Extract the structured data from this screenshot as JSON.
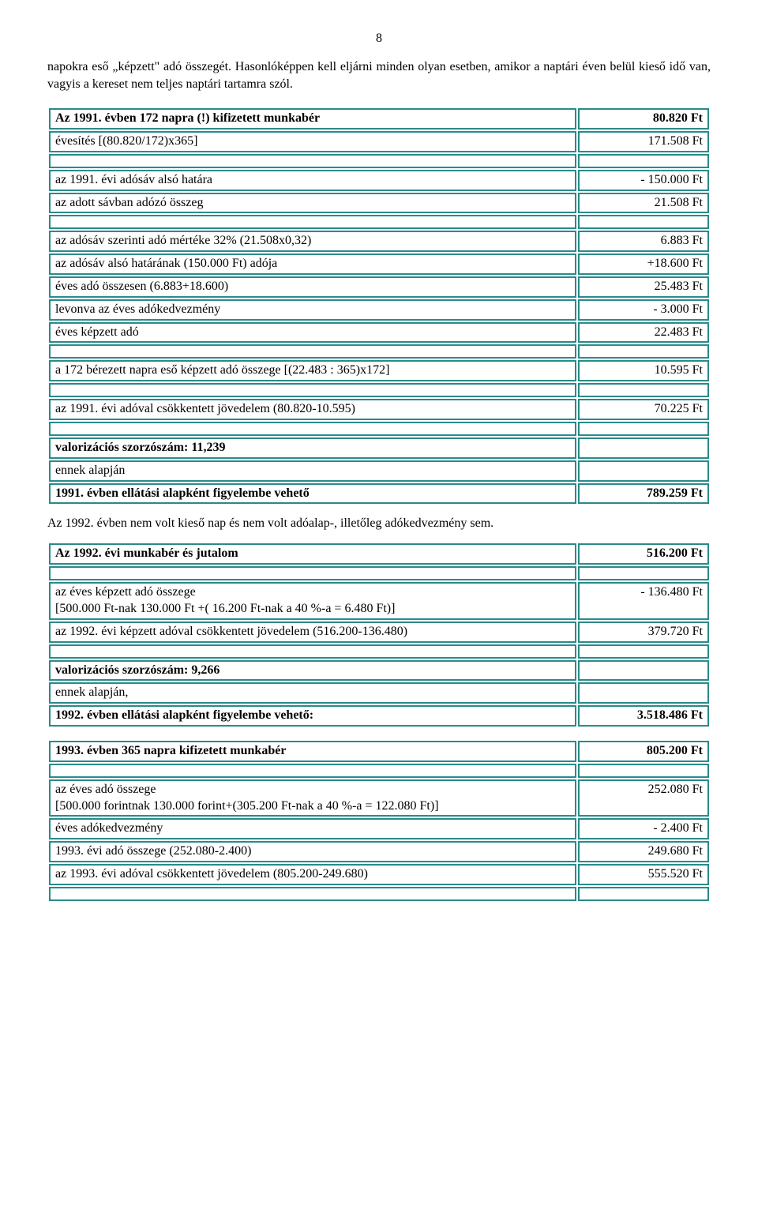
{
  "page_number": "8",
  "intro_text": "napokra eső „képzett\" adó összegét. Hasonlóképpen kell eljárni minden olyan esetben, amikor a naptári éven belül kieső idő van, vagyis a kereset nem teljes naptári tartamra szól.",
  "table1": {
    "rows": [
      {
        "l": "Az 1991. évben 172 napra (!) kifizetett munkabér",
        "r": "80.820 Ft",
        "bold": true
      },
      {
        "l": "évesítés [(80.820/172)x365]",
        "r": "171.508 Ft"
      },
      {
        "spacer": true
      },
      {
        "l": "az 1991. évi adósáv alsó határa",
        "r": "- 150.000 Ft"
      },
      {
        "l": "az adott sávban adózó összeg",
        "r": "21.508 Ft"
      },
      {
        "spacer": true
      },
      {
        "l": "az adósáv szerinti adó mértéke 32% (21.508x0,32)",
        "r": "6.883 Ft"
      },
      {
        "l": "az adósáv alsó határának (150.000 Ft) adója",
        "r": "+18.600 Ft"
      },
      {
        "l": "éves adó összesen (6.883+18.600)",
        "r": "25.483 Ft"
      },
      {
        "l": "levonva az éves adókedvezmény",
        "r": "- 3.000 Ft"
      },
      {
        "l": "éves képzett adó",
        "r": "22.483 Ft"
      },
      {
        "spacer": true
      },
      {
        "l": "a 172 bérezett napra eső képzett adó összege [(22.483 : 365)x172]",
        "r": "10.595 Ft"
      },
      {
        "spacer": true
      },
      {
        "l": "az 1991. évi adóval csökkentett jövedelem  (80.820-10.595)",
        "r": "70.225 Ft"
      },
      {
        "spacer": true
      },
      {
        "l": "valorizációs szorzószám: 11,239",
        "r": "",
        "bold": true
      },
      {
        "l": "ennek alapján",
        "r": ""
      },
      {
        "l": "1991. évben ellátási alapként figyelembe vehető",
        "r": "789.259 Ft",
        "bold": true
      }
    ]
  },
  "mid_text": "Az 1992. évben nem volt kieső nap és nem volt adóalap-, illetőleg adókedvezmény sem.",
  "table2": {
    "rows": [
      {
        "l": "Az 1992. évi munkabér és jutalom",
        "r": "516.200 Ft",
        "bold": true
      },
      {
        "spacer": true
      },
      {
        "l": "az éves képzett adó összege\n[500.000 Ft-nak 130.000 Ft +( 16.200 Ft-nak a 40 %-a = 6.480 Ft)]",
        "r": "- 136.480 Ft"
      },
      {
        "l": "az 1992. évi képzett adóval csökkentett jövedelem (516.200-136.480)",
        "r": "379.720 Ft"
      },
      {
        "spacer": true
      },
      {
        "l": "valorizációs szorzószám: 9,266",
        "r": "",
        "bold": true
      },
      {
        "l": "ennek alapján,",
        "r": ""
      },
      {
        "l": "1992. évben ellátási alapként figyelembe vehető:",
        "r": "3.518.486 Ft",
        "bold": true
      }
    ]
  },
  "table3": {
    "rows": [
      {
        "l": "1993. évben 365 napra kifizetett munkabér",
        "r": "805.200 Ft",
        "bold": true
      },
      {
        "spacer": true
      },
      {
        "l": "az éves adó összege\n[500.000 forintnak 130.000 forint+(305.200 Ft-nak a 40 %-a = 122.080 Ft)]",
        "r": "252.080 Ft"
      },
      {
        "l": "éves adókedvezmény",
        "r": "- 2.400 Ft"
      },
      {
        "l": "1993. évi adó összege (252.080-2.400)",
        "r": "249.680 Ft"
      },
      {
        "l": "az 1993. évi adóval csökkentett jövedelem (805.200-249.680)",
        "r": "555.520 Ft"
      },
      {
        "spacer": true
      }
    ]
  },
  "border_color": "#2a8a8a"
}
